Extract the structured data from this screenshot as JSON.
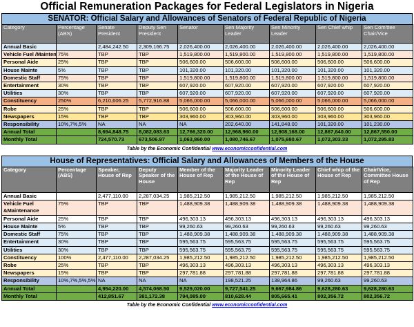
{
  "title": "Official Remuneration Packages for Federal Legislators in Nigeria",
  "credit": {
    "prefix": "Table by the Economic Confidential",
    "link": "www.economicconfidential.com"
  },
  "colors": {
    "header": "#808080",
    "section": "#9bc2e6",
    "total": "#70ad47",
    "constituency": "#f4b084"
  },
  "senate": {
    "title": "SENATOR: Official Salary and Allowances of Senators of Federal Republic of Nigeria",
    "headers": [
      "Category",
      "Percentage (ABS)",
      "Senate President",
      "Deputy Sen President",
      "Senator",
      "Sen Majority Leader",
      "Sen Minority Leader",
      "Sen Chief whip",
      "Sen Com'ttee Chair/Vice"
    ],
    "rows": [
      {
        "style": "blue",
        "cells": [
          "Annual Basic",
          "",
          "2,484,242.50",
          "2,309,166.75",
          "2,026,400.00",
          "2,026,400.00",
          "2,026,400.00",
          "2,026,400.00",
          "2,026,400.00"
        ]
      },
      {
        "style": "peach",
        "cells": [
          "Vehicle Fuel /Maintenance",
          "75%",
          "TBP",
          "TBP",
          "1,519,800.00",
          "1,519,800.00",
          "1,519,800.00",
          "1,519,800.00",
          "1,519,800.00"
        ]
      },
      {
        "style": "yellow",
        "cells": [
          "Personal Aide",
          "25%",
          "TBP",
          "TBP",
          "506,600.00",
          "506,600.00",
          "506,600.00",
          "506,600.00",
          "506,600.00"
        ]
      },
      {
        "style": "blue",
        "cells": [
          "House Mainte",
          "5%",
          "TBP",
          "TBP",
          "101,320.00",
          "101,320.00",
          "101,320.00",
          "101,320.00",
          "101,320.00"
        ]
      },
      {
        "style": "peach",
        "cells": [
          "Domestic Staff",
          "75%",
          "TBP",
          "TBP",
          "1,519,800.00",
          "1,519,800.00",
          "1,519,800.00",
          "1,519,800.00",
          "1,519,800.00"
        ]
      },
      {
        "style": "yellow",
        "cells": [
          "Entertainment",
          "30%",
          "TBP",
          "TBP",
          "607,920.00",
          "607,920.00",
          "607,920.00",
          "607,920.00",
          "607,920.00"
        ]
      },
      {
        "style": "blue",
        "cells": [
          "Utilities",
          "30%",
          "TBP",
          "TBP",
          "607,920.00",
          "607,920.00",
          "607,920.00",
          "607,920.00",
          "607,920.00"
        ]
      },
      {
        "style": "orange",
        "cells": [
          "Constituency",
          "250%",
          "6,210,606.25",
          "5,772,916.88",
          "5,066,000.00",
          "5,066,000.00",
          "5,066,000.00",
          "5,066,000.00",
          "5,066,000.00"
        ]
      },
      {
        "style": "yellow",
        "cells": [
          "Robe",
          "25%",
          "TBP",
          "TBP",
          "506,600.00",
          "506,600.00",
          "506,600.00",
          "506,600.00",
          "506,600.00"
        ]
      },
      {
        "style": "yellow2",
        "cells": [
          "Newspapers",
          "15%",
          "TBP",
          "TBP",
          "303,960.00",
          "303,960.00",
          "303,960.00",
          "303,960.00",
          "303,960.00"
        ]
      },
      {
        "style": "purple",
        "cells": [
          "Responsibility",
          "10%,7%,5%",
          "NA",
          "NA",
          "NA",
          "202,640.00",
          "141,848.00",
          "101,320.00",
          "101,230.00"
        ]
      },
      {
        "style": "green",
        "cells": [
          "Annual Total",
          "",
          "8,694,848.75",
          "8,082,083.63",
          "12,766,320.00",
          "12,968,960.00",
          "12,908,168.00",
          "12,867,640.00",
          "12,867,550.00"
        ]
      },
      {
        "style": "green",
        "cells": [
          "Monthly Total",
          "",
          "724,570.73",
          "673,506.97",
          "1,063,860.00",
          "1,080,746.67",
          "1,075,680.67",
          "1,072,303.33",
          "1,072,295.83"
        ]
      }
    ]
  },
  "house": {
    "title": "House of Representatives: Official Salary and Allowances of Members of the House",
    "headers": [
      "Category",
      "Percentage (ABS)",
      "Speaker, House of Rep",
      "Deputy Speaker of the House",
      "Member of the House of Rep",
      "Majority Leader of the House of Rep",
      "Minority Leader of the House of Rep",
      "Chief whip of the House of Rep",
      "Chair/Vice, Committee House of Rep"
    ],
    "rows": [
      {
        "style": "white",
        "cells": [
          "Annual Basic",
          "",
          "2,477,110.00",
          "2,287,034.25",
          "1,985,212.50",
          "1,985,212.50",
          "1,985,212.50",
          "1,985,212.50",
          "1,985,212.50"
        ]
      },
      {
        "style": "peach",
        "tall": true,
        "cells": [
          "Vehicle Fuel &Maintenance",
          "75%",
          "TBP",
          "TBP",
          "1,488,909.38",
          "1,488,909.38",
          "1,488,909.38",
          "1,488,909.38",
          "1,488,909.38"
        ]
      },
      {
        "style": "white",
        "cells": [
          "Personal Aide",
          "25%",
          "TBP",
          "TBP",
          "496,303.13",
          "496,303.13",
          "496,303.13",
          "496,303.13",
          "496,303.13"
        ]
      },
      {
        "style": "blue",
        "cells": [
          "House Mainte",
          "5%",
          "TBP",
          "TBP",
          "99,260.63",
          "99,260.63",
          "99,260.63",
          "99,260.63",
          "99,260.63"
        ]
      },
      {
        "style": "blue",
        "cells": [
          "Domestic Staff",
          "75%",
          "TBP",
          "TBP",
          "1,488,909.38",
          "1,488,909.38",
          "1,488,909.38",
          "1,488,909.38",
          "1,488,909.38"
        ]
      },
      {
        "style": "blue",
        "cells": [
          "Entertainment",
          "30%",
          "TBP",
          "TBP",
          "595,563.75",
          "595,563.75",
          "595,563.75",
          "595,563.75",
          "595,563.75"
        ]
      },
      {
        "style": "blue",
        "cells": [
          "Utilities",
          "30%",
          "TBP",
          "TBP",
          "595,563.75",
          "595,563.75",
          "595,563.75",
          "595,563.75",
          "595,563.75"
        ]
      },
      {
        "style": "yellow",
        "cells": [
          "Constituency",
          "100%",
          "2,477,110.00",
          "2,287,034.25",
          "1,985,212.50",
          "1,985,212.50",
          "1,985,212.50",
          "1,985,212.50",
          "1,985,212.50"
        ]
      },
      {
        "style": "yellow",
        "cells": [
          "Robe",
          "25%",
          "TBP",
          "TBP",
          "496,303.13",
          "496,303.13",
          "496,303.13",
          "496,303.13",
          "496,303.13"
        ]
      },
      {
        "style": "yellow",
        "cells": [
          "Newspapers",
          "15%",
          "TBP",
          "TBP",
          "297,781.88",
          "297,781.88",
          "297,781.88",
          "297,781.88",
          "297,781.88"
        ]
      },
      {
        "style": "purple",
        "cells": [
          "Responsibility",
          "10%,7%,5%,5%",
          "NA",
          "NA",
          "NA",
          "198,521.25",
          "138,964.86",
          "99,260.63",
          "99,260.63"
        ]
      },
      {
        "style": "green",
        "cells": [
          "Annual Total",
          "",
          "4,954,220.00",
          "4,574,068.50",
          "9,529,020.00",
          "9,727,541.25",
          "9,667,984.86",
          "9,628,280.63",
          "9,628,280.63"
        ]
      },
      {
        "style": "green",
        "cells": [
          "Monthly Total",
          "",
          "412,851.67",
          "381,172.38",
          "794,085.00",
          "810,628.44",
          "805,665.41",
          "802,356.72",
          "802,356.72"
        ]
      }
    ]
  }
}
